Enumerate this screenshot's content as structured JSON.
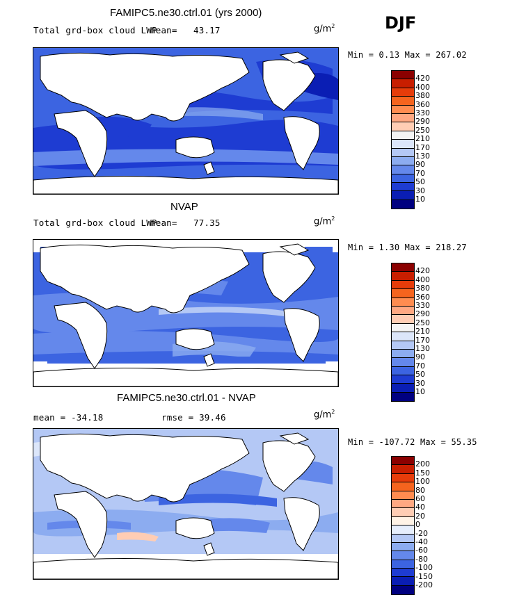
{
  "season": "DJF",
  "panels": [
    {
      "title": "FAMIPC5.ne30.ctrl.01 (yrs 2000)",
      "variable": "Total grd-box cloud LWP",
      "mean_label": "mean=",
      "mean_value": "43.17",
      "unit_base": "g/m",
      "unit_exp": "2",
      "minmax": "Min =   0.13 Max = 267.02"
    },
    {
      "title": "NVAP",
      "variable": "Total grd-box cloud LWP",
      "mean_label": "mean=",
      "mean_value": "77.35",
      "unit_base": "g/m",
      "unit_exp": "2",
      "minmax": "Min =   1.30 Max = 218.27"
    },
    {
      "title": "FAMIPC5.ne30.ctrl.01 - NVAP",
      "mean_text": "mean = -34.18",
      "rmse_text": "rmse =  39.46",
      "unit_base": "g/m",
      "unit_exp": "2",
      "minmax": "Min = -107.72 Max =  55.35"
    }
  ],
  "colorbar_abs": {
    "labels": [
      "420",
      "400",
      "380",
      "360",
      "330",
      "290",
      "250",
      "210",
      "170",
      "130",
      "90",
      "70",
      "50",
      "30",
      "10"
    ],
    "colors": [
      "#8b0000",
      "#c81e00",
      "#e63c0a",
      "#f5641e",
      "#ff8c50",
      "#ffa882",
      "#ffcdb4",
      "#f4f4f4",
      "#dce6fa",
      "#b4c8f5",
      "#8cacf0",
      "#6488eb",
      "#3c64e1",
      "#1e3cd2",
      "#0a1eb4",
      "#000080"
    ]
  },
  "colorbar_diff": {
    "labels": [
      "200",
      "150",
      "100",
      "80",
      "60",
      "40",
      "20",
      "0",
      "-20",
      "-40",
      "-60",
      "-80",
      "-100",
      "-150",
      "-200"
    ],
    "colors": [
      "#8b0000",
      "#c81e00",
      "#e63c0a",
      "#f5641e",
      "#ff8c50",
      "#ffa882",
      "#ffcdb4",
      "#fff3e6",
      "#e6eefc",
      "#b4c8f5",
      "#8cacf0",
      "#6488eb",
      "#3c64e1",
      "#1e3cd2",
      "#0a1eb4",
      "#000080"
    ]
  }
}
